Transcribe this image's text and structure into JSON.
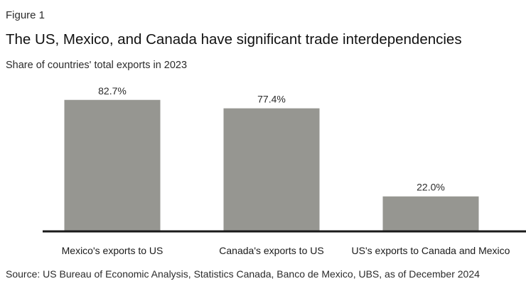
{
  "figure_label": "Figure 1",
  "title": "The US, Mexico, and Canada have significant trade interdependencies",
  "subtitle": "Share of countries' total exports in 2023",
  "source": "Source: US Bureau of Economic Analysis, Statistics Canada, Banco de Mexico, UBS, as of December 2024",
  "colors": {
    "bar": "#969691",
    "axis": "#1a1a1a"
  },
  "chart_data": {
    "type": "bar",
    "categories": [
      "Mexico's exports to US",
      "Canada's exports to US",
      "US's exports to Canada and Mexico"
    ],
    "values": [
      82.7,
      77.4,
      22.0
    ],
    "data_labels": [
      "82.7%",
      "77.4%",
      "22.0%"
    ],
    "unit": "%",
    "ylim": [
      0,
      100
    ],
    "grid": false,
    "legend": "none"
  }
}
